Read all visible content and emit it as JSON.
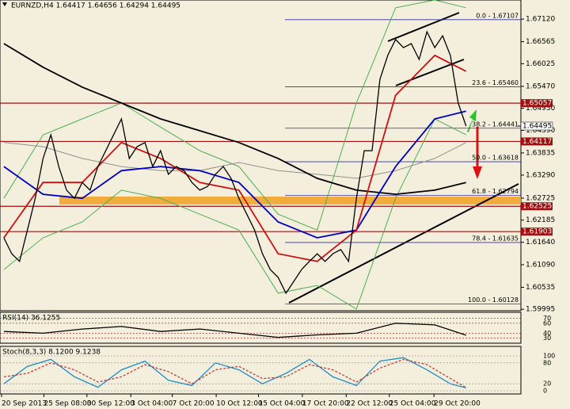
{
  "chart_data": {
    "type": "line",
    "title": "EURNZD,H4 1.64417 1.64656 1.64294 1.64495",
    "x": [
      0,
      1,
      2,
      3,
      4,
      5,
      6,
      7,
      8,
      9,
      10,
      11,
      12,
      13,
      14,
      15,
      16,
      17,
      18,
      19,
      20,
      21,
      22,
      23,
      24,
      25,
      26,
      27,
      28,
      29,
      30,
      31,
      32,
      33,
      34,
      35,
      36,
      37,
      38,
      39,
      40,
      41,
      42,
      43,
      44,
      45,
      46,
      47,
      48,
      49,
      50,
      51,
      52,
      53,
      54,
      55,
      56,
      57,
      58,
      59
    ],
    "values": [
      1.6175,
      1.6136,
      1.6117,
      1.6194,
      1.6272,
      1.637,
      1.6428,
      1.635,
      1.6292,
      1.6272,
      1.6311,
      1.6292,
      1.635,
      1.6389,
      1.6428,
      1.6467,
      1.637,
      1.6399,
      1.6409,
      1.635,
      1.6389,
      1.6331,
      1.635,
      1.634,
      1.6311,
      1.6292,
      1.6301,
      1.6331,
      1.635,
      1.6321,
      1.6272,
      1.6233,
      1.6194,
      1.6136,
      1.6097,
      1.6078,
      1.6039,
      1.6068,
      1.6097,
      1.6117,
      1.6136,
      1.6117,
      1.6136,
      1.6146,
      1.6117,
      1.6272,
      1.6389,
      1.6389,
      1.6564,
      1.6623,
      1.6662,
      1.6642,
      1.6652,
      1.6613,
      1.6681,
      1.6642,
      1.6671,
      1.6623,
      1.6506,
      1.64495
    ],
    "color": "#000000",
    "xlim": [
      -0.5,
      66
    ],
    "xticks": [
      {
        "value": -0.3,
        "label": "20 Sep 2013"
      },
      {
        "value": 5.1,
        "label": "25 Sep 08:00"
      },
      {
        "value": 10.6,
        "label": "30 Sep 12:00"
      },
      {
        "value": 16.2,
        "label": "3 Oct 04:00"
      },
      {
        "value": 21.5,
        "label": "7 Oct 20:00"
      },
      {
        "value": 27.1,
        "label": "10 Oct 12:00"
      },
      {
        "value": 32.5,
        "label": "15 Oct 04:00"
      },
      {
        "value": 38.1,
        "label": "17 Oct 20:00"
      },
      {
        "value": 43.7,
        "label": "22 Oct 12:00"
      },
      {
        "value": 49.2,
        "label": "25 Oct 04:00"
      },
      {
        "value": 54.9,
        "label": "29 Oct 20:00"
      }
    ],
    "ylim": [
      1.5996,
      1.6759
    ],
    "yticks": [
      {
        "value": 1.6712,
        "label": "1.67120"
      },
      {
        "value": 1.66565,
        "label": "1.66565"
      },
      {
        "value": 1.66025,
        "label": "1.66025"
      },
      {
        "value": 1.6547,
        "label": "1.65470"
      },
      {
        "value": 1.6493,
        "label": "1.64930"
      },
      {
        "value": 1.6439,
        "label": "1.64390"
      },
      {
        "value": 1.63835,
        "label": "1.63835"
      },
      {
        "value": 1.6329,
        "label": "1.63290"
      },
      {
        "value": 1.62725,
        "label": "1.62725"
      },
      {
        "value": 1.62185,
        "label": "1.62185"
      },
      {
        "value": 1.6164,
        "label": "1.61640"
      },
      {
        "value": 1.6109,
        "label": "1.61090"
      },
      {
        "value": 1.60535,
        "label": "1.60535"
      },
      1.59995
    ],
    "overlay_x": [
      0,
      5,
      10,
      15,
      20,
      25,
      30,
      35,
      40,
      45,
      50,
      55,
      59
    ],
    "overlays": [
      {
        "color": "#4caf50",
        "values": [
          1.6272,
          1.6428,
          1.6467,
          1.6506,
          1.6447,
          1.6389,
          1.635,
          1.6233,
          1.6194,
          1.6506,
          1.674,
          1.6759,
          1.674
        ]
      },
      {
        "color": "#4caf50",
        "values": [
          1.6097,
          1.6175,
          1.6214,
          1.6292,
          1.6272,
          1.6233,
          1.6194,
          1.6039,
          1.6058,
          1.6,
          1.6272,
          1.6467,
          1.6428
        ]
      },
      {
        "color": "#909090",
        "values": [
          1.6409,
          1.6399,
          1.637,
          1.635,
          1.634,
          1.634,
          1.636,
          1.634,
          1.6331,
          1.6321,
          1.634,
          1.637,
          1.6409
        ]
      },
      {
        "color": "#000000",
        "values": [
          1.6652,
          1.6594,
          1.6545,
          1.6506,
          1.6467,
          1.6438,
          1.6409,
          1.637,
          1.6321,
          1.6292,
          1.6282,
          1.6292,
          1.6311
        ]
      },
      {
        "color": "#0000c0",
        "values": [
          1.635,
          1.6282,
          1.6272,
          1.634,
          1.635,
          1.634,
          1.6311,
          1.6214,
          1.6175,
          1.6194,
          1.635,
          1.6467,
          1.6486
        ]
      },
      {
        "color": "#d01010",
        "values": [
          1.6175,
          1.6311,
          1.6311,
          1.6409,
          1.637,
          1.6311,
          1.6292,
          1.6136,
          1.6117,
          1.6194,
          1.6525,
          1.6623,
          1.6584
        ]
      }
    ],
    "levels": [
      {
        "value": 1.65057,
        "label": "1.65057"
      },
      {
        "value": 1.64117,
        "label": "1.64117"
      },
      {
        "value": 1.62525,
        "label": "1.62525"
      },
      {
        "value": 1.61903,
        "label": "1.61903"
      }
    ],
    "level_color": "#a01010",
    "last_price": {
      "value": 1.64495,
      "label": "1.64495"
    },
    "fib": [
      {
        "value": 1.67107,
        "label": "0.0 - 1.67107"
      },
      {
        "value": 1.6546,
        "label": "23.6 - 1.65460"
      },
      {
        "value": 1.64441,
        "label": "38.2 - 1.64441"
      },
      {
        "value": 1.63618,
        "label": "50.0 - 1.63618"
      },
      {
        "value": 1.62794,
        "label": "61.8 - 1.62794"
      },
      {
        "value": 1.61635,
        "label": "78.4 - 1.61635"
      },
      {
        "value": 1.60128,
        "label": "100.0 - 1.60128"
      }
    ],
    "fib_color": "#3030a0",
    "rsi": {
      "label": "RSI(14) 36.1255",
      "ylim": [
        20,
        82
      ],
      "yticks": [
        70,
        60,
        40,
        30
      ],
      "color": "#000000",
      "values": [
        43.5,
        40,
        48.5,
        53.5,
        43.5,
        48.5,
        40,
        31.7,
        36.7,
        40,
        60,
        56.8,
        36.1255
      ]
    },
    "stoch": {
      "label": "Stoch(8,3,3) 8.1200 9.1238",
      "ylim": [
        0,
        100
      ],
      "yticks": [
        100,
        80,
        20,
        0
      ],
      "x": [
        0,
        3,
        6,
        9,
        12,
        15,
        18,
        21,
        24,
        27,
        30,
        33,
        36,
        39,
        42,
        45,
        48,
        51,
        54,
        57,
        59
      ],
      "main": {
        "color": "#1e8cc8",
        "values": [
          20,
          70,
          90,
          40,
          10,
          60,
          85,
          30,
          15,
          80,
          60,
          20,
          50,
          90,
          40,
          15,
          85,
          95,
          60,
          20,
          8.12
        ]
      },
      "signal": {
        "color": "#c04040",
        "values": [
          40,
          50,
          80,
          60,
          25,
          40,
          75,
          55,
          20,
          60,
          70,
          35,
          40,
          75,
          60,
          25,
          65,
          90,
          75,
          35,
          9.1238
        ]
      }
    }
  }
}
